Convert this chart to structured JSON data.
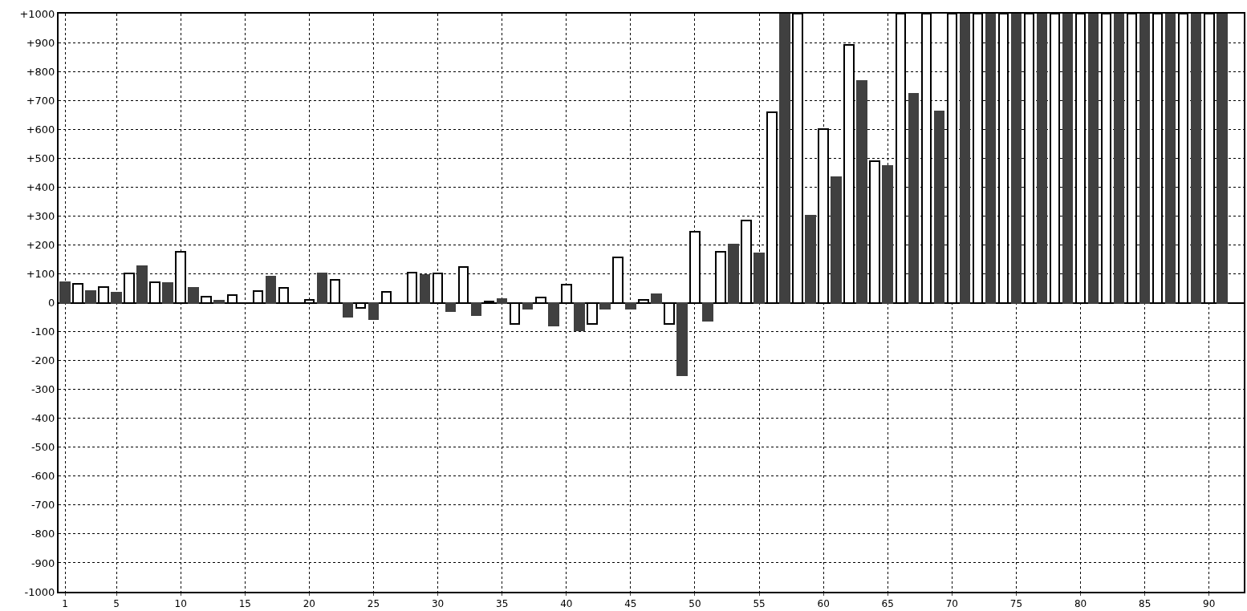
{
  "chart_data": {
    "type": "bar",
    "x": [
      1,
      2,
      3,
      4,
      5,
      6,
      7,
      8,
      9,
      10,
      11,
      12,
      13,
      14,
      15,
      16,
      17,
      18,
      19,
      20,
      21,
      22,
      23,
      24,
      25,
      26,
      27,
      28,
      29,
      30,
      31,
      32,
      33,
      34,
      35,
      36,
      37,
      38,
      39,
      40,
      41,
      42,
      43,
      44,
      45,
      46,
      47,
      48,
      49,
      50,
      51,
      52,
      53,
      54,
      55,
      56,
      57,
      58,
      59,
      60,
      61,
      62,
      63,
      64,
      65,
      66,
      67,
      68,
      69,
      70,
      71,
      72,
      73,
      74,
      75,
      76,
      77,
      78,
      79,
      80,
      81,
      82,
      83,
      84,
      85,
      86,
      87,
      88,
      89,
      90,
      91
    ],
    "series": [
      {
        "color": "#404040",
        "values": [
          72,
          null,
          40,
          null,
          35,
          null,
          125,
          null,
          68,
          null,
          50,
          null,
          8,
          null,
          null,
          null,
          90,
          null,
          null,
          null,
          100,
          null,
          -48,
          null,
          -58,
          null,
          null,
          null,
          97,
          null,
          -30,
          null,
          -42,
          null,
          12,
          null,
          -20,
          null,
          -80,
          null,
          -97,
          null,
          -20,
          null,
          -20,
          null,
          30,
          null,
          -252,
          null,
          -63,
          null,
          200,
          null,
          170,
          null,
          1000,
          null,
          300,
          null,
          435,
          null,
          768,
          null,
          472,
          null,
          722,
          null,
          662,
          null,
          1000,
          null,
          1000,
          null,
          1000,
          null,
          1000,
          null,
          1000,
          null,
          1000,
          null,
          1000,
          null,
          1000,
          null,
          1000,
          null,
          1000,
          null,
          1000
        ]
      },
      {
        "color": "#ffffff",
        "values": [
          null,
          65,
          null,
          55,
          null,
          100,
          null,
          70,
          null,
          175,
          null,
          20,
          null,
          25,
          null,
          40,
          null,
          50,
          null,
          10,
          null,
          78,
          null,
          -18,
          null,
          38,
          null,
          105,
          null,
          100,
          null,
          123,
          null,
          5,
          null,
          -73,
          null,
          17,
          null,
          62,
          null,
          -73,
          null,
          157,
          null,
          10,
          null,
          -73,
          null,
          245,
          null,
          175,
          null,
          285,
          null,
          660,
          null,
          1000,
          null,
          600,
          null,
          893,
          null,
          490,
          null,
          1000,
          null,
          1000,
          null,
          1000,
          null,
          1000,
          null,
          1000,
          null,
          1000,
          null,
          1000,
          null,
          1000,
          null,
          1000,
          null,
          1000,
          null,
          1000,
          null,
          1000,
          null,
          1000,
          null
        ]
      }
    ],
    "xlim": [
      0.5,
      92.7
    ],
    "xticks": [
      1,
      5,
      10,
      15,
      20,
      25,
      30,
      35,
      40,
      45,
      50,
      55,
      60,
      65,
      70,
      75,
      80,
      85,
      90
    ],
    "ylim": [
      -1000,
      1000
    ],
    "yticks": [
      {
        "value": -1000,
        "label": "-1000"
      },
      {
        "value": -900,
        "label": "-900"
      },
      {
        "value": -800,
        "label": "-800"
      },
      {
        "value": -700,
        "label": "-700"
      },
      {
        "value": -600,
        "label": "-600"
      },
      {
        "value": -500,
        "label": "-500"
      },
      {
        "value": -400,
        "label": "-400"
      },
      {
        "value": -300,
        "label": "-300"
      },
      {
        "value": -200,
        "label": "-200"
      },
      {
        "value": -100,
        "label": "-100"
      },
      0,
      {
        "value": 100,
        "label": "+100"
      },
      {
        "value": 200,
        "label": "+200"
      },
      {
        "value": 300,
        "label": "+300"
      },
      {
        "value": 400,
        "label": "+400"
      },
      {
        "value": 500,
        "label": "+500"
      },
      {
        "value": 600,
        "label": "+600"
      },
      {
        "value": 700,
        "label": "+700"
      },
      {
        "value": 800,
        "label": "+800"
      },
      {
        "value": 900,
        "label": "+900"
      },
      {
        "value": 1000,
        "label": "+1000"
      }
    ],
    "grid": true
  }
}
